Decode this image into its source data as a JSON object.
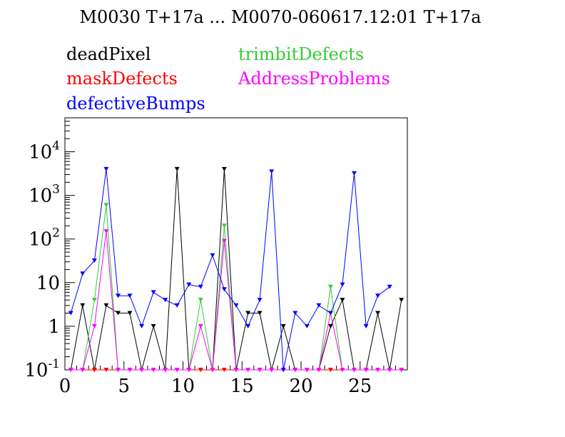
{
  "chart_data": {
    "type": "line",
    "title": "M0030 T+17a ... M0070-060617.12:01 T+17a",
    "xlabel": "",
    "ylabel": "",
    "xlim": [
      0,
      29
    ],
    "ylim": [
      0.1,
      60000
    ],
    "yscale": "log",
    "grid": false,
    "legend_position": "top",
    "x_ticks": [
      {
        "value": 0,
        "label": "0"
      },
      {
        "value": 5,
        "label": "5"
      },
      {
        "value": 10,
        "label": "10"
      },
      {
        "value": 15,
        "label": "15"
      },
      {
        "value": 20,
        "label": "20"
      },
      {
        "value": 25,
        "label": "25"
      }
    ],
    "y_ticks": [
      {
        "value": 0.1,
        "base": "10",
        "exp": "-1"
      },
      {
        "value": 1,
        "base": "1",
        "exp": ""
      },
      {
        "value": 10,
        "base": "10",
        "exp": ""
      },
      {
        "value": 100,
        "base": "10",
        "exp": "2"
      },
      {
        "value": 1000,
        "base": "10",
        "exp": "3"
      },
      {
        "value": 10000,
        "base": "10",
        "exp": "4"
      }
    ],
    "x": [
      0.5,
      1.5,
      2.5,
      3.5,
      4.5,
      5.5,
      6.5,
      7.5,
      8.5,
      9.5,
      10.5,
      11.5,
      12.5,
      13.5,
      14.5,
      15.5,
      16.5,
      17.5,
      18.5,
      19.5,
      20.5,
      21.5,
      22.5,
      23.5,
      24.5,
      25.5,
      26.5,
      27.5,
      28.5
    ],
    "series": [
      {
        "name": "deadPixel",
        "color": "#000000",
        "values": [
          0.1,
          3,
          0.1,
          3,
          2,
          2,
          0.1,
          1,
          0.1,
          4000,
          0.1,
          0.1,
          0.1,
          4000,
          0.1,
          2,
          2,
          0.1,
          1,
          0.1,
          0.1,
          0.1,
          1,
          4,
          0.1,
          0.1,
          2,
          0.1,
          4
        ]
      },
      {
        "name": "maskDefects",
        "color": "#ff0000",
        "values": [
          0.1,
          0.1,
          0.1,
          0.1,
          0.1,
          0.1,
          0.1,
          0.1,
          0.1,
          0.1,
          0.1,
          0.1,
          0.1,
          0.1,
          0.1,
          0.1,
          0.1,
          0.1,
          0.1,
          0.1,
          0.1,
          0.1,
          0.1,
          0.1,
          0.1,
          0.1,
          0.1,
          0.1,
          0.1
        ]
      },
      {
        "name": "defectiveBumps",
        "color": "#0000ff",
        "values": [
          2,
          16,
          32,
          4000,
          5,
          5,
          1,
          6,
          4,
          3,
          9,
          8,
          42,
          7,
          3,
          1,
          4,
          3500,
          0.1,
          2,
          1,
          3,
          2,
          9,
          3200,
          1,
          5,
          8,
          null
        ]
      },
      {
        "name": "trimbitDefects",
        "color": "#33cc33",
        "values": [
          0.1,
          0.1,
          4,
          600,
          0.1,
          0.1,
          0.1,
          0.1,
          0.1,
          0.1,
          0.1,
          4,
          0.1,
          200,
          0.1,
          0.1,
          0.1,
          0.1,
          0.1,
          0.1,
          0.1,
          0.1,
          8,
          0.1,
          0.1,
          0.1,
          0.1,
          0.1,
          0.1
        ]
      },
      {
        "name": "AddressProblems",
        "color": "#ff00ff",
        "values": [
          0.1,
          0.1,
          1,
          150,
          0.1,
          0.1,
          0.1,
          0.1,
          0.1,
          0.1,
          0.1,
          1,
          0.1,
          90,
          0.1,
          0.1,
          0.1,
          0.1,
          0.1,
          0.1,
          0.1,
          0.1,
          2,
          0.1,
          0.1,
          0.1,
          0.1,
          0.1,
          0.1
        ]
      }
    ]
  }
}
